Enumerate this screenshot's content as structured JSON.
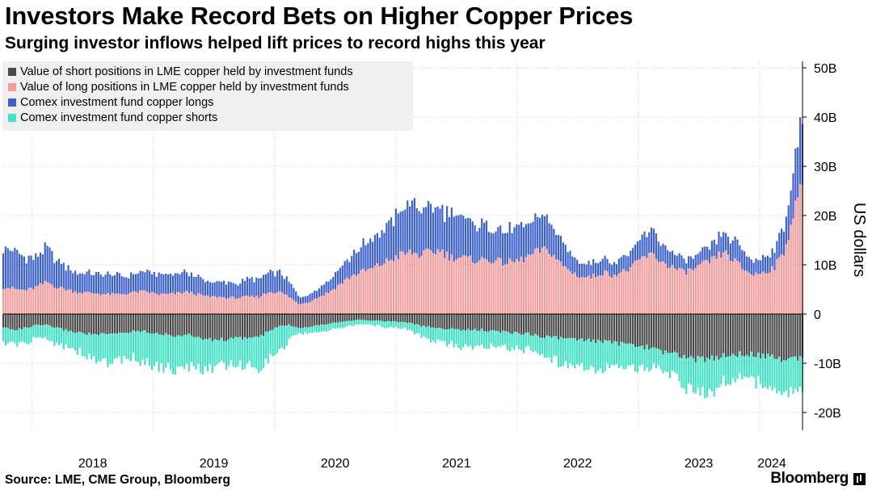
{
  "header": {
    "title": "Investors Make Record Bets on Higher Copper Prices",
    "subtitle": "Surging investor inflows helped lift prices to record highs this year"
  },
  "footer": {
    "source": "Source: LME, CME Group, Bloomberg",
    "brand": "Bloomberg"
  },
  "chart_data": {
    "type": "bar",
    "stacked": true,
    "frequency": "weekly",
    "title": "Investors Make Record Bets on Higher Copper Prices",
    "subtitle": "Surging investor inflows helped lift prices to record highs this year",
    "ylabel": "US dollars",
    "ylim": [
      -22,
      52
    ],
    "y_ticks": [
      {
        "value": 50,
        "label": "50B"
      },
      {
        "value": 40,
        "label": "40B"
      },
      {
        "value": 30,
        "label": "30B"
      },
      {
        "value": 20,
        "label": "20B"
      },
      {
        "value": 10,
        "label": "10B"
      },
      {
        "value": 0,
        "label": "0"
      },
      {
        "value": -10,
        "label": "-10B"
      },
      {
        "value": -20,
        "label": "-20B"
      }
    ],
    "x_range": [
      "2017-10-06",
      "2024-05-10"
    ],
    "x_ticks": [
      {
        "date": "2018-01-01",
        "label": "2018"
      },
      {
        "date": "2019-01-01",
        "label": "2019"
      },
      {
        "date": "2020-01-01",
        "label": "2020"
      },
      {
        "date": "2021-01-01",
        "label": "2021"
      },
      {
        "date": "2022-01-01",
        "label": "2022"
      },
      {
        "date": "2023-01-01",
        "label": "2023"
      },
      {
        "date": "2024-01-01",
        "label": "2024"
      }
    ],
    "grid": true,
    "legend_position": "top-left",
    "series": [
      {
        "name": "Value of short positions in LME copper held by investment funds",
        "color": "#4a4a4a",
        "key": "lme_short"
      },
      {
        "name": "Value of long positions in LME copper held by investment funds",
        "color": "#f59c9c",
        "key": "lme_long"
      },
      {
        "name": "Comex investment fund copper longs",
        "color": "#3c61cc",
        "key": "comex_long"
      },
      {
        "name": "Comex investment fund copper shorts",
        "color": "#42e2c6",
        "key": "comex_short"
      }
    ],
    "monthly_values": {
      "months": [
        "2017-10",
        "2017-11",
        "2017-12",
        "2018-01",
        "2018-02",
        "2018-03",
        "2018-04",
        "2018-05",
        "2018-06",
        "2018-07",
        "2018-08",
        "2018-09",
        "2018-10",
        "2018-11",
        "2018-12",
        "2019-01",
        "2019-02",
        "2019-03",
        "2019-04",
        "2019-05",
        "2019-06",
        "2019-07",
        "2019-08",
        "2019-09",
        "2019-10",
        "2019-11",
        "2019-12",
        "2020-01",
        "2020-02",
        "2020-03",
        "2020-04",
        "2020-05",
        "2020-06",
        "2020-07",
        "2020-08",
        "2020-09",
        "2020-10",
        "2020-11",
        "2020-12",
        "2021-01",
        "2021-02",
        "2021-03",
        "2021-04",
        "2021-05",
        "2021-06",
        "2021-07",
        "2021-08",
        "2021-09",
        "2021-10",
        "2021-11",
        "2021-12",
        "2022-01",
        "2022-02",
        "2022-03",
        "2022-04",
        "2022-05",
        "2022-06",
        "2022-07",
        "2022-08",
        "2022-09",
        "2022-10",
        "2022-11",
        "2022-12",
        "2023-01",
        "2023-02",
        "2023-03",
        "2023-04",
        "2023-05",
        "2023-06",
        "2023-07",
        "2023-08",
        "2023-09",
        "2023-10",
        "2023-11",
        "2023-12",
        "2024-01",
        "2024-02",
        "2024-03",
        "2024-04",
        "2024-05"
      ],
      "lme_long": [
        5.5,
        5.0,
        4.8,
        5.5,
        6.5,
        5.5,
        5.0,
        4.5,
        4.3,
        4.2,
        4.0,
        4.0,
        4.2,
        4.5,
        4.5,
        4.0,
        4.0,
        4.2,
        4.5,
        4.0,
        3.5,
        3.5,
        3.3,
        3.3,
        3.5,
        3.5,
        4.5,
        4.5,
        3.5,
        2.0,
        2.5,
        3.5,
        4.5,
        6.0,
        7.5,
        8.5,
        9.0,
        10.0,
        11.0,
        12.0,
        12.5,
        12.0,
        12.5,
        13.0,
        11.5,
        11.5,
        11.0,
        11.0,
        11.0,
        10.5,
        10.5,
        11.0,
        12.0,
        13.0,
        12.5,
        10.0,
        8.5,
        7.5,
        7.5,
        8.5,
        8.0,
        8.5,
        9.5,
        11.5,
        12.0,
        10.5,
        9.5,
        8.5,
        9.0,
        10.0,
        11.0,
        12.5,
        11.0,
        9.0,
        8.0,
        8.5,
        9.5,
        12.5,
        21.0,
        27.0
      ],
      "comex_long": [
        8.0,
        7.5,
        6.5,
        6.0,
        7.0,
        5.5,
        4.5,
        4.0,
        4.0,
        4.0,
        4.0,
        3.8,
        3.5,
        3.8,
        4.0,
        4.0,
        4.0,
        4.0,
        4.0,
        3.5,
        3.0,
        3.0,
        3.0,
        3.0,
        3.5,
        3.5,
        4.0,
        4.0,
        3.0,
        1.5,
        1.5,
        2.0,
        2.5,
        3.5,
        4.0,
        5.0,
        6.0,
        6.5,
        7.5,
        9.0,
        10.0,
        9.5,
        9.0,
        8.5,
        8.5,
        8.0,
        7.5,
        7.0,
        7.0,
        6.5,
        6.5,
        6.5,
        6.5,
        7.0,
        6.0,
        4.5,
        3.5,
        3.0,
        3.0,
        3.0,
        2.5,
        3.0,
        3.5,
        4.5,
        5.0,
        3.5,
        3.0,
        2.5,
        2.5,
        2.5,
        3.0,
        4.0,
        4.0,
        3.5,
        3.0,
        3.0,
        3.5,
        5.5,
        9.0,
        14.0
      ],
      "lme_short": [
        -2.8,
        -3.2,
        -2.8,
        -2.3,
        -2.3,
        -2.8,
        -3.3,
        -3.7,
        -4.0,
        -4.2,
        -4.2,
        -3.9,
        -3.7,
        -3.4,
        -3.6,
        -3.9,
        -4.3,
        -4.4,
        -4.2,
        -4.7,
        -5.2,
        -5.2,
        -5.1,
        -4.9,
        -4.8,
        -4.7,
        -3.5,
        -2.5,
        -2.2,
        -2.8,
        -2.5,
        -2.2,
        -1.9,
        -1.6,
        -1.3,
        -1.2,
        -1.3,
        -1.4,
        -1.5,
        -1.6,
        -1.8,
        -2.4,
        -2.7,
        -2.9,
        -3.0,
        -3.2,
        -3.3,
        -3.2,
        -3.5,
        -3.6,
        -3.8,
        -3.9,
        -4.1,
        -4.5,
        -4.7,
        -4.9,
        -5.2,
        -5.3,
        -5.4,
        -5.6,
        -5.8,
        -6.1,
        -6.3,
        -6.6,
        -7.1,
        -7.6,
        -8.0,
        -8.6,
        -9.1,
        -9.3,
        -8.9,
        -8.5,
        -8.1,
        -8.0,
        -8.3,
        -8.6,
        -8.9,
        -9.1,
        -9.0,
        -8.7
      ],
      "comex_short": [
        -3.2,
        -2.8,
        -3.2,
        -2.7,
        -2.7,
        -3.2,
        -3.2,
        -3.8,
        -4.5,
        -5.3,
        -5.8,
        -5.6,
        -5.8,
        -5.6,
        -6.4,
        -6.6,
        -6.7,
        -7.1,
        -6.8,
        -6.5,
        -5.8,
        -5.3,
        -5.4,
        -5.6,
        -5.7,
        -6.3,
        -5.5,
        -5.5,
        -2.8,
        -1.2,
        -1.3,
        -1.3,
        -1.4,
        -1.2,
        -1.0,
        -0.9,
        -0.9,
        -1.1,
        -1.2,
        -1.2,
        -1.4,
        -2.1,
        -2.5,
        -2.8,
        -3.1,
        -3.3,
        -3.4,
        -3.3,
        -3.3,
        -3.2,
        -3.2,
        -3.2,
        -3.0,
        -3.3,
        -4.4,
        -5.5,
        -5.8,
        -5.7,
        -5.6,
        -5.5,
        -5.2,
        -4.9,
        -4.8,
        -4.5,
        -3.8,
        -3.8,
        -4.5,
        -5.8,
        -6.4,
        -7.2,
        -6.6,
        -5.5,
        -4.7,
        -4.4,
        -5.1,
        -6.1,
        -6.6,
        -7.0,
        -7.5,
        -7.4
      ]
    }
  }
}
